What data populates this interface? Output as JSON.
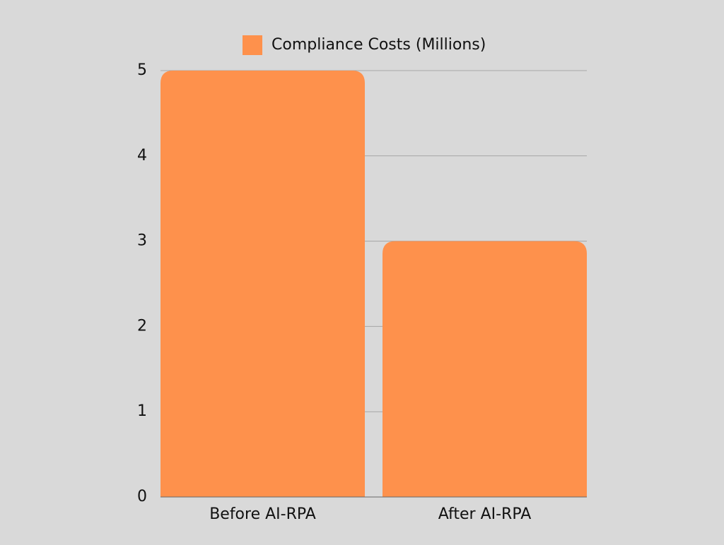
{
  "chart_data": {
    "type": "bar",
    "categories": [
      "Before AI-RPA",
      "After AI-RPA"
    ],
    "series": [
      {
        "name": "Compliance Costs (Millions)",
        "color": "#fe914c",
        "values": [
          5,
          3
        ]
      }
    ],
    "ylim": [
      0,
      5
    ],
    "yticks": [
      0,
      1,
      2,
      3,
      4,
      5
    ],
    "grid": true,
    "legend": "top"
  }
}
